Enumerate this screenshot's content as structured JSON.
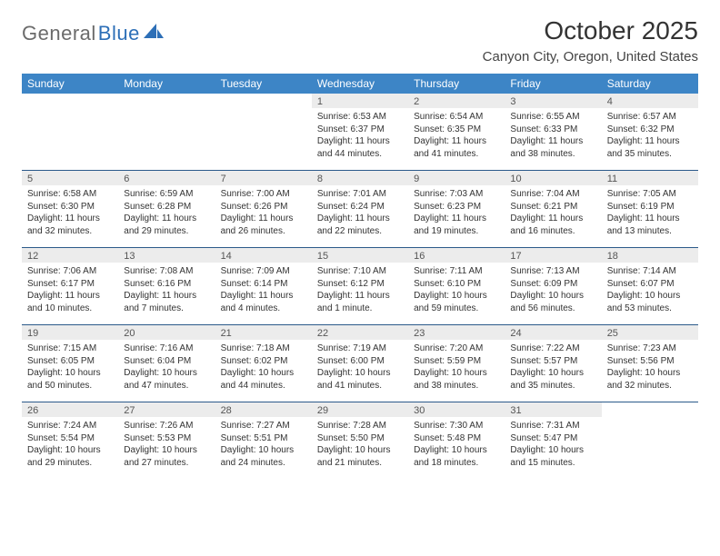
{
  "logo": {
    "text1": "General",
    "text2": "Blue"
  },
  "title": "October 2025",
  "location": "Canyon City, Oregon, United States",
  "colors": {
    "header_bg": "#3d85c6",
    "header_text": "#ffffff",
    "daynum_bg": "#ececec",
    "week_divider": "#2b5a8a",
    "logo_gray": "#6b6b6b",
    "logo_blue": "#2d6fb7",
    "text": "#333333"
  },
  "days_of_week": [
    "Sunday",
    "Monday",
    "Tuesday",
    "Wednesday",
    "Thursday",
    "Friday",
    "Saturday"
  ],
  "weeks": [
    [
      {
        "n": "",
        "sunrise": "",
        "sunset": "",
        "daylight": ""
      },
      {
        "n": "",
        "sunrise": "",
        "sunset": "",
        "daylight": ""
      },
      {
        "n": "",
        "sunrise": "",
        "sunset": "",
        "daylight": ""
      },
      {
        "n": "1",
        "sunrise": "Sunrise: 6:53 AM",
        "sunset": "Sunset: 6:37 PM",
        "daylight": "Daylight: 11 hours and 44 minutes."
      },
      {
        "n": "2",
        "sunrise": "Sunrise: 6:54 AM",
        "sunset": "Sunset: 6:35 PM",
        "daylight": "Daylight: 11 hours and 41 minutes."
      },
      {
        "n": "3",
        "sunrise": "Sunrise: 6:55 AM",
        "sunset": "Sunset: 6:33 PM",
        "daylight": "Daylight: 11 hours and 38 minutes."
      },
      {
        "n": "4",
        "sunrise": "Sunrise: 6:57 AM",
        "sunset": "Sunset: 6:32 PM",
        "daylight": "Daylight: 11 hours and 35 minutes."
      }
    ],
    [
      {
        "n": "5",
        "sunrise": "Sunrise: 6:58 AM",
        "sunset": "Sunset: 6:30 PM",
        "daylight": "Daylight: 11 hours and 32 minutes."
      },
      {
        "n": "6",
        "sunrise": "Sunrise: 6:59 AM",
        "sunset": "Sunset: 6:28 PM",
        "daylight": "Daylight: 11 hours and 29 minutes."
      },
      {
        "n": "7",
        "sunrise": "Sunrise: 7:00 AM",
        "sunset": "Sunset: 6:26 PM",
        "daylight": "Daylight: 11 hours and 26 minutes."
      },
      {
        "n": "8",
        "sunrise": "Sunrise: 7:01 AM",
        "sunset": "Sunset: 6:24 PM",
        "daylight": "Daylight: 11 hours and 22 minutes."
      },
      {
        "n": "9",
        "sunrise": "Sunrise: 7:03 AM",
        "sunset": "Sunset: 6:23 PM",
        "daylight": "Daylight: 11 hours and 19 minutes."
      },
      {
        "n": "10",
        "sunrise": "Sunrise: 7:04 AM",
        "sunset": "Sunset: 6:21 PM",
        "daylight": "Daylight: 11 hours and 16 minutes."
      },
      {
        "n": "11",
        "sunrise": "Sunrise: 7:05 AM",
        "sunset": "Sunset: 6:19 PM",
        "daylight": "Daylight: 11 hours and 13 minutes."
      }
    ],
    [
      {
        "n": "12",
        "sunrise": "Sunrise: 7:06 AM",
        "sunset": "Sunset: 6:17 PM",
        "daylight": "Daylight: 11 hours and 10 minutes."
      },
      {
        "n": "13",
        "sunrise": "Sunrise: 7:08 AM",
        "sunset": "Sunset: 6:16 PM",
        "daylight": "Daylight: 11 hours and 7 minutes."
      },
      {
        "n": "14",
        "sunrise": "Sunrise: 7:09 AM",
        "sunset": "Sunset: 6:14 PM",
        "daylight": "Daylight: 11 hours and 4 minutes."
      },
      {
        "n": "15",
        "sunrise": "Sunrise: 7:10 AM",
        "sunset": "Sunset: 6:12 PM",
        "daylight": "Daylight: 11 hours and 1 minute."
      },
      {
        "n": "16",
        "sunrise": "Sunrise: 7:11 AM",
        "sunset": "Sunset: 6:10 PM",
        "daylight": "Daylight: 10 hours and 59 minutes."
      },
      {
        "n": "17",
        "sunrise": "Sunrise: 7:13 AM",
        "sunset": "Sunset: 6:09 PM",
        "daylight": "Daylight: 10 hours and 56 minutes."
      },
      {
        "n": "18",
        "sunrise": "Sunrise: 7:14 AM",
        "sunset": "Sunset: 6:07 PM",
        "daylight": "Daylight: 10 hours and 53 minutes."
      }
    ],
    [
      {
        "n": "19",
        "sunrise": "Sunrise: 7:15 AM",
        "sunset": "Sunset: 6:05 PM",
        "daylight": "Daylight: 10 hours and 50 minutes."
      },
      {
        "n": "20",
        "sunrise": "Sunrise: 7:16 AM",
        "sunset": "Sunset: 6:04 PM",
        "daylight": "Daylight: 10 hours and 47 minutes."
      },
      {
        "n": "21",
        "sunrise": "Sunrise: 7:18 AM",
        "sunset": "Sunset: 6:02 PM",
        "daylight": "Daylight: 10 hours and 44 minutes."
      },
      {
        "n": "22",
        "sunrise": "Sunrise: 7:19 AM",
        "sunset": "Sunset: 6:00 PM",
        "daylight": "Daylight: 10 hours and 41 minutes."
      },
      {
        "n": "23",
        "sunrise": "Sunrise: 7:20 AM",
        "sunset": "Sunset: 5:59 PM",
        "daylight": "Daylight: 10 hours and 38 minutes."
      },
      {
        "n": "24",
        "sunrise": "Sunrise: 7:22 AM",
        "sunset": "Sunset: 5:57 PM",
        "daylight": "Daylight: 10 hours and 35 minutes."
      },
      {
        "n": "25",
        "sunrise": "Sunrise: 7:23 AM",
        "sunset": "Sunset: 5:56 PM",
        "daylight": "Daylight: 10 hours and 32 minutes."
      }
    ],
    [
      {
        "n": "26",
        "sunrise": "Sunrise: 7:24 AM",
        "sunset": "Sunset: 5:54 PM",
        "daylight": "Daylight: 10 hours and 29 minutes."
      },
      {
        "n": "27",
        "sunrise": "Sunrise: 7:26 AM",
        "sunset": "Sunset: 5:53 PM",
        "daylight": "Daylight: 10 hours and 27 minutes."
      },
      {
        "n": "28",
        "sunrise": "Sunrise: 7:27 AM",
        "sunset": "Sunset: 5:51 PM",
        "daylight": "Daylight: 10 hours and 24 minutes."
      },
      {
        "n": "29",
        "sunrise": "Sunrise: 7:28 AM",
        "sunset": "Sunset: 5:50 PM",
        "daylight": "Daylight: 10 hours and 21 minutes."
      },
      {
        "n": "30",
        "sunrise": "Sunrise: 7:30 AM",
        "sunset": "Sunset: 5:48 PM",
        "daylight": "Daylight: 10 hours and 18 minutes."
      },
      {
        "n": "31",
        "sunrise": "Sunrise: 7:31 AM",
        "sunset": "Sunset: 5:47 PM",
        "daylight": "Daylight: 10 hours and 15 minutes."
      },
      {
        "n": "",
        "sunrise": "",
        "sunset": "",
        "daylight": ""
      }
    ]
  ]
}
